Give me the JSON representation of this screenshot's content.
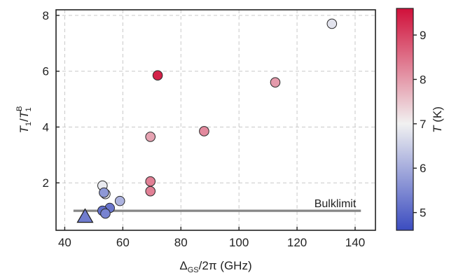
{
  "chart_data": {
    "type": "scatter",
    "xlabel": {
      "base": "Δ",
      "sub": "GS",
      "rest": "/2π (GHz)"
    },
    "ylabel": {
      "base": "T",
      "sub": "1",
      "mid": "/T",
      "sup": "B",
      "sub2": "1"
    },
    "xlim": [
      37,
      147
    ],
    "ylim": [
      0.3,
      8.2
    ],
    "xticks": [
      40,
      60,
      80,
      100,
      120,
      140
    ],
    "yticks": [
      2,
      4,
      6,
      8
    ],
    "grid": true,
    "grid_style": "dashed",
    "colorbar": {
      "label": {
        "base": "T",
        "rest": " (K)"
      },
      "range": [
        4.6,
        9.6
      ],
      "ticks": [
        5,
        6,
        7,
        8,
        9
      ],
      "colormap": "coolwarm",
      "low_color": "#3b4cc0",
      "mid_color": "#f1f1f1",
      "high_color": "#d0103a"
    },
    "points": [
      {
        "x": 132,
        "y": 7.7,
        "T": 6.8
      },
      {
        "x": 72,
        "y": 5.85,
        "T": 9.4
      },
      {
        "x": 112.5,
        "y": 5.6,
        "T": 8.0
      },
      {
        "x": 88,
        "y": 3.85,
        "T": 8.2
      },
      {
        "x": 69.5,
        "y": 3.65,
        "T": 7.9
      },
      {
        "x": 69.5,
        "y": 2.05,
        "T": 8.3
      },
      {
        "x": 69.5,
        "y": 1.7,
        "T": 8.3
      },
      {
        "x": 53,
        "y": 1.9,
        "T": 6.9
      },
      {
        "x": 54,
        "y": 1.6,
        "T": 6.9
      },
      {
        "x": 53.5,
        "y": 1.65,
        "T": 5.7
      },
      {
        "x": 59,
        "y": 1.35,
        "T": 6.1
      },
      {
        "x": 55.5,
        "y": 1.1,
        "T": 5.2
      },
      {
        "x": 53,
        "y": 1.0,
        "T": 5.1
      },
      {
        "x": 54,
        "y": 0.9,
        "T": 5.4
      }
    ],
    "triangle_point": {
      "x": 47,
      "y": 0.8,
      "T": 5.3
    },
    "bulk_limit": {
      "label": "Bulklimit",
      "y": 1.0,
      "x_start": 43,
      "x_end": 142,
      "color": "#858585"
    }
  }
}
